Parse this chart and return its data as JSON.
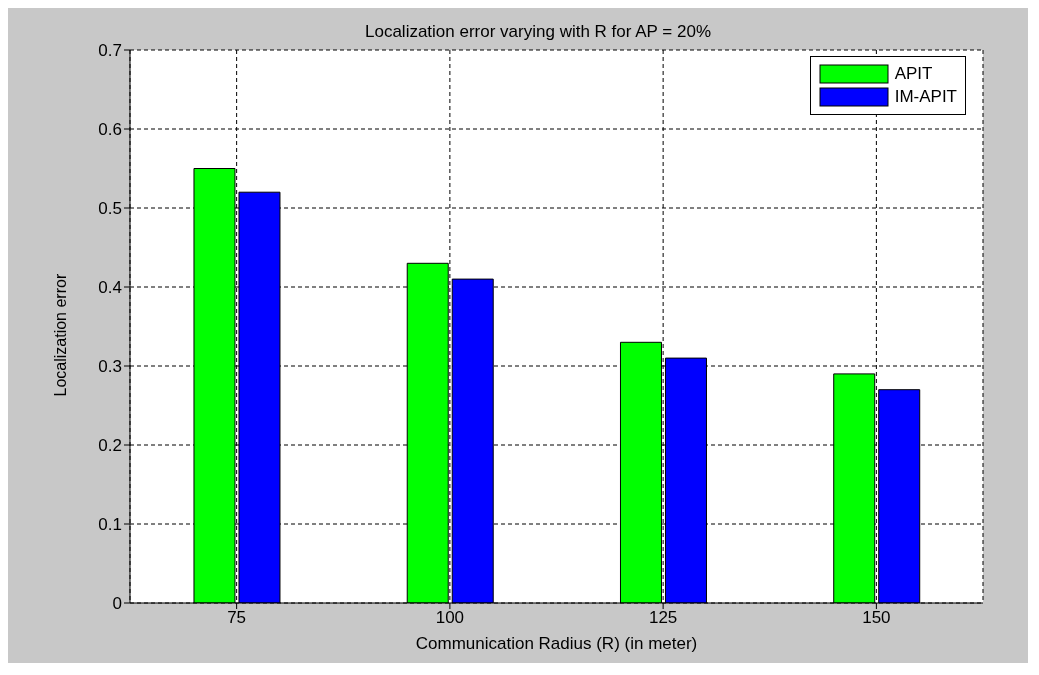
{
  "chart_data": {
    "type": "bar",
    "title": "Localization error varying with R for AP = 20%",
    "xlabel": "Communication Radius (R) (in meter)",
    "ylabel": "Localization error",
    "categories": [
      "75",
      "100",
      "125",
      "150"
    ],
    "series": [
      {
        "name": "APIT",
        "color": "#00ff00",
        "values": [
          0.55,
          0.43,
          0.33,
          0.29
        ]
      },
      {
        "name": "IM-APIT",
        "color": "#0000ff",
        "values": [
          0.52,
          0.41,
          0.31,
          0.27
        ]
      }
    ],
    "ylim": [
      0,
      0.7
    ],
    "yticks": [
      0,
      0.1,
      0.2,
      0.3,
      0.4,
      0.5,
      0.6,
      0.7
    ],
    "grid": true,
    "legend": "top right"
  }
}
